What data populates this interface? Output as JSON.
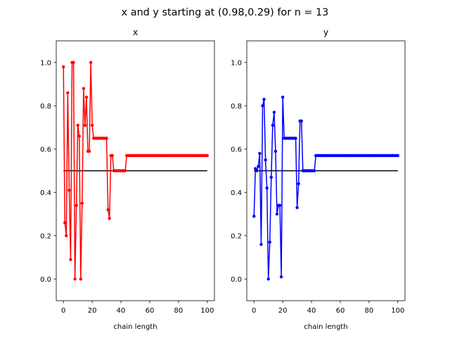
{
  "figure": {
    "suptitle": "x and y starting at (0.98,0.29) for n = 13"
  },
  "chart_data": [
    {
      "type": "line",
      "title": "x",
      "xlabel": "chain length",
      "ylabel": "",
      "xlim": [
        -5,
        105
      ],
      "ylim": [
        -0.1,
        1.1
      ],
      "x_ticks": [
        0,
        20,
        40,
        60,
        80,
        100
      ],
      "y_ticks": [
        0.0,
        0.2,
        0.4,
        0.6,
        0.8,
        1.0
      ],
      "grid": false,
      "series": [
        {
          "color": "#ff0000",
          "marker": "circle",
          "x": [
            0,
            1,
            2,
            3,
            4,
            5,
            6,
            7,
            8,
            9,
            10,
            11,
            12,
            13,
            14,
            15,
            16,
            17,
            18,
            19,
            20,
            21,
            22,
            23,
            24,
            25,
            26,
            27,
            28,
            29,
            30,
            31,
            32,
            33,
            34,
            35,
            36,
            37,
            38,
            39,
            40,
            41,
            42,
            43,
            44,
            45,
            46,
            47,
            48,
            49,
            50,
            51,
            52,
            53,
            54,
            55,
            56,
            57,
            58,
            59,
            60,
            61,
            62,
            63,
            64,
            65,
            66,
            67,
            68,
            69,
            70,
            71,
            72,
            73,
            74,
            75,
            76,
            77,
            78,
            79,
            80,
            81,
            82,
            83,
            84,
            85,
            86,
            87,
            88,
            89,
            90,
            91,
            92,
            93,
            94,
            95,
            96,
            97,
            98,
            99,
            100
          ],
          "values": [
            0.98,
            0.26,
            0.2,
            0.86,
            0.41,
            0.09,
            1.0,
            1.0,
            0.0,
            0.34,
            0.71,
            0.66,
            0.0,
            0.35,
            0.88,
            0.71,
            0.84,
            0.59,
            0.59,
            1.0,
            0.71,
            0.65,
            0.65,
            0.65,
            0.65,
            0.65,
            0.65,
            0.65,
            0.65,
            0.65,
            0.65,
            0.32,
            0.28,
            0.57,
            0.57,
            0.5,
            0.5,
            0.5,
            0.5,
            0.5,
            0.5,
            0.5,
            0.5,
            0.5,
            0.57,
            0.57,
            0.57,
            0.57,
            0.57,
            0.57,
            0.57,
            0.57,
            0.57,
            0.57,
            0.57,
            0.57,
            0.57,
            0.57,
            0.57,
            0.57,
            0.57,
            0.57,
            0.57,
            0.57,
            0.57,
            0.57,
            0.57,
            0.57,
            0.57,
            0.57,
            0.57,
            0.57,
            0.57,
            0.57,
            0.57,
            0.57,
            0.57,
            0.57,
            0.57,
            0.57,
            0.57,
            0.57,
            0.57,
            0.57,
            0.57,
            0.57,
            0.57,
            0.57,
            0.57,
            0.57,
            0.57,
            0.57,
            0.57,
            0.57,
            0.57,
            0.57,
            0.57,
            0.57,
            0.57,
            0.57,
            0.57
          ]
        }
      ],
      "reference_line": {
        "y": 0.5,
        "x_from": 0,
        "x_to": 100,
        "color": "#000000"
      }
    },
    {
      "type": "line",
      "title": "y",
      "xlabel": "chain length",
      "ylabel": "",
      "xlim": [
        -5,
        105
      ],
      "ylim": [
        -0.1,
        1.1
      ],
      "x_ticks": [
        0,
        20,
        40,
        60,
        80,
        100
      ],
      "y_ticks": [
        0.0,
        0.2,
        0.4,
        0.6,
        0.8,
        1.0
      ],
      "grid": false,
      "series": [
        {
          "color": "#0000ff",
          "marker": "circle",
          "x": [
            0,
            1,
            2,
            3,
            4,
            5,
            6,
            7,
            8,
            9,
            10,
            11,
            12,
            13,
            14,
            15,
            16,
            17,
            18,
            19,
            20,
            21,
            22,
            23,
            24,
            25,
            26,
            27,
            28,
            29,
            30,
            31,
            32,
            33,
            34,
            35,
            36,
            37,
            38,
            39,
            40,
            41,
            42,
            43,
            44,
            45,
            46,
            47,
            48,
            49,
            50,
            51,
            52,
            53,
            54,
            55,
            56,
            57,
            58,
            59,
            60,
            61,
            62,
            63,
            64,
            65,
            66,
            67,
            68,
            69,
            70,
            71,
            72,
            73,
            74,
            75,
            76,
            77,
            78,
            79,
            80,
            81,
            82,
            83,
            84,
            85,
            86,
            87,
            88,
            89,
            90,
            91,
            92,
            93,
            94,
            95,
            96,
            97,
            98,
            99,
            100
          ],
          "values": [
            0.29,
            0.51,
            0.5,
            0.52,
            0.58,
            0.16,
            0.8,
            0.83,
            0.55,
            0.42,
            0.0,
            0.17,
            0.47,
            0.71,
            0.77,
            0.59,
            0.3,
            0.34,
            0.34,
            0.01,
            0.84,
            0.65,
            0.65,
            0.65,
            0.65,
            0.65,
            0.65,
            0.65,
            0.65,
            0.65,
            0.33,
            0.44,
            0.73,
            0.73,
            0.5,
            0.5,
            0.5,
            0.5,
            0.5,
            0.5,
            0.5,
            0.5,
            0.5,
            0.57,
            0.57,
            0.57,
            0.57,
            0.57,
            0.57,
            0.57,
            0.57,
            0.57,
            0.57,
            0.57,
            0.57,
            0.57,
            0.57,
            0.57,
            0.57,
            0.57,
            0.57,
            0.57,
            0.57,
            0.57,
            0.57,
            0.57,
            0.57,
            0.57,
            0.57,
            0.57,
            0.57,
            0.57,
            0.57,
            0.57,
            0.57,
            0.57,
            0.57,
            0.57,
            0.57,
            0.57,
            0.57,
            0.57,
            0.57,
            0.57,
            0.57,
            0.57,
            0.57,
            0.57,
            0.57,
            0.57,
            0.57,
            0.57,
            0.57,
            0.57,
            0.57,
            0.57,
            0.57,
            0.57,
            0.57,
            0.57,
            0.57
          ]
        }
      ],
      "reference_line": {
        "y": 0.5,
        "x_from": 0,
        "x_to": 100,
        "color": "#000000"
      }
    }
  ]
}
